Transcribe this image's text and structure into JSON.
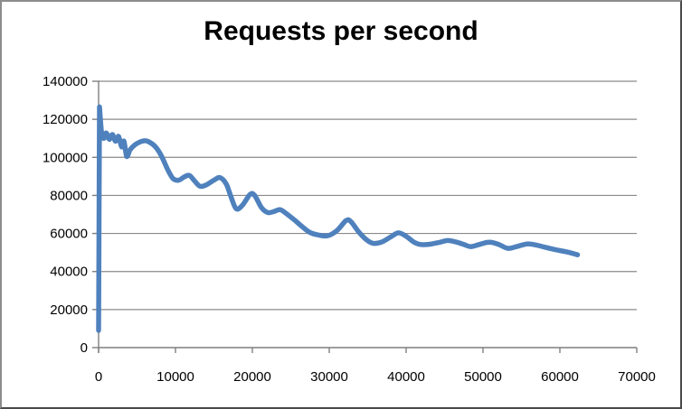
{
  "chart_data": {
    "type": "line",
    "title": "Requests per second",
    "xlabel": "",
    "ylabel": "",
    "xlim": [
      0,
      70000
    ],
    "ylim": [
      0,
      140000
    ],
    "x_ticks": [
      0,
      10000,
      20000,
      30000,
      40000,
      50000,
      60000,
      70000
    ],
    "y_ticks": [
      0,
      20000,
      40000,
      60000,
      80000,
      100000,
      120000,
      140000
    ],
    "grid": "horizontal",
    "legend": "none",
    "series_name": "Requests per second",
    "series_color": "#4F81BD",
    "grid_color": "#8A8A8A",
    "axis_color": "#7F7F7F",
    "text_color": "#000000",
    "points": [
      [
        0,
        9000
      ],
      [
        120,
        126500
      ],
      [
        400,
        112500
      ],
      [
        700,
        110000
      ],
      [
        1000,
        112800
      ],
      [
        1400,
        109500
      ],
      [
        1800,
        112000
      ],
      [
        2200,
        108500
      ],
      [
        2600,
        111000
      ],
      [
        3000,
        105500
      ],
      [
        3300,
        108500
      ],
      [
        3650,
        100500
      ],
      [
        4100,
        104000
      ],
      [
        4700,
        106500
      ],
      [
        5500,
        108300
      ],
      [
        6200,
        108700
      ],
      [
        7000,
        107000
      ],
      [
        7600,
        104500
      ],
      [
        8200,
        100500
      ],
      [
        9000,
        93500
      ],
      [
        9700,
        88800
      ],
      [
        10400,
        88000
      ],
      [
        11100,
        89600
      ],
      [
        11800,
        90500
      ],
      [
        12500,
        87500
      ],
      [
        13200,
        84800
      ],
      [
        14000,
        85500
      ],
      [
        15000,
        88000
      ],
      [
        15800,
        89300
      ],
      [
        16600,
        86000
      ],
      [
        17200,
        79500
      ],
      [
        17900,
        73000
      ],
      [
        18700,
        74800
      ],
      [
        19700,
        80500
      ],
      [
        20300,
        80000
      ],
      [
        21200,
        73500
      ],
      [
        22000,
        71000
      ],
      [
        22800,
        71500
      ],
      [
        23600,
        72500
      ],
      [
        24400,
        70500
      ],
      [
        25500,
        67000
      ],
      [
        26500,
        63500
      ],
      [
        27500,
        60500
      ],
      [
        28600,
        59200
      ],
      [
        29800,
        58800
      ],
      [
        31000,
        61500
      ],
      [
        32200,
        66800
      ],
      [
        32800,
        66300
      ],
      [
        33800,
        61000
      ],
      [
        34800,
        56800
      ],
      [
        35700,
        54800
      ],
      [
        36800,
        55500
      ],
      [
        38000,
        58200
      ],
      [
        39000,
        60300
      ],
      [
        40000,
        58500
      ],
      [
        41000,
        55500
      ],
      [
        41900,
        54200
      ],
      [
        43000,
        54300
      ],
      [
        44200,
        55200
      ],
      [
        45400,
        56300
      ],
      [
        46500,
        55500
      ],
      [
        47500,
        54200
      ],
      [
        48400,
        53100
      ],
      [
        49500,
        54200
      ],
      [
        50800,
        55400
      ],
      [
        52000,
        54300
      ],
      [
        53200,
        52200
      ],
      [
        54300,
        53000
      ],
      [
        55700,
        54500
      ],
      [
        56800,
        54000
      ],
      [
        58000,
        52800
      ],
      [
        59500,
        51400
      ],
      [
        61000,
        50200
      ],
      [
        62300,
        48800
      ]
    ]
  }
}
